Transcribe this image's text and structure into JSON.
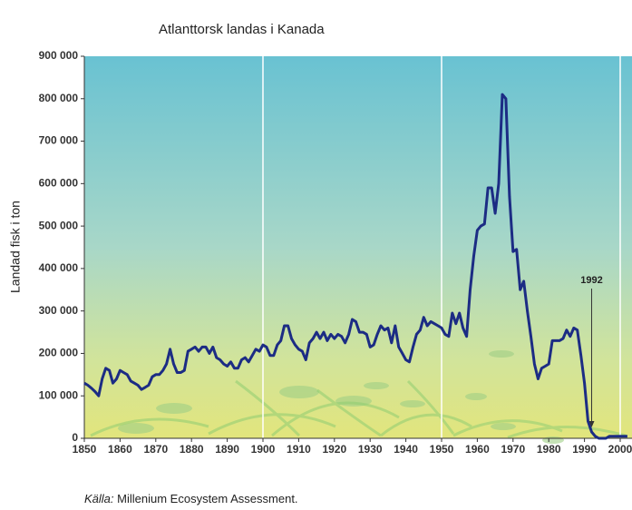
{
  "chart_data": {
    "type": "line",
    "title": "Atlanttorsk landas i Kanada",
    "y_label": "Landad fisk i ton",
    "source_label": "Källa:",
    "source": "Millenium Ecosystem Assessment.",
    "color": "#1c2c84",
    "x": [
      1850,
      1851,
      1852,
      1853,
      1854,
      1855,
      1856,
      1857,
      1858,
      1859,
      1860,
      1861,
      1862,
      1863,
      1864,
      1865,
      1866,
      1867,
      1868,
      1869,
      1870,
      1871,
      1872,
      1873,
      1874,
      1875,
      1876,
      1877,
      1878,
      1879,
      1880,
      1881,
      1882,
      1883,
      1884,
      1885,
      1886,
      1887,
      1888,
      1889,
      1890,
      1891,
      1892,
      1893,
      1894,
      1895,
      1896,
      1897,
      1898,
      1899,
      1900,
      1901,
      1902,
      1903,
      1904,
      1905,
      1906,
      1907,
      1908,
      1909,
      1910,
      1911,
      1912,
      1913,
      1914,
      1915,
      1916,
      1917,
      1918,
      1919,
      1920,
      1921,
      1922,
      1923,
      1924,
      1925,
      1926,
      1927,
      1928,
      1929,
      1930,
      1931,
      1932,
      1933,
      1934,
      1935,
      1936,
      1937,
      1938,
      1939,
      1940,
      1941,
      1942,
      1943,
      1944,
      1945,
      1946,
      1947,
      1948,
      1949,
      1950,
      1951,
      1952,
      1953,
      1954,
      1955,
      1956,
      1957,
      1958,
      1959,
      1960,
      1961,
      1962,
      1963,
      1964,
      1965,
      1966,
      1967,
      1968,
      1969,
      1970,
      1971,
      1972,
      1973,
      1974,
      1975,
      1976,
      1977,
      1978,
      1979,
      1980,
      1981,
      1982,
      1983,
      1984,
      1985,
      1986,
      1987,
      1988,
      1989,
      1990,
      1991,
      1992,
      1993,
      1994,
      1995,
      1996,
      1997,
      1998,
      1999,
      2000,
      2001,
      2002
    ],
    "values": [
      130000,
      125000,
      118000,
      110000,
      100000,
      140000,
      165000,
      160000,
      130000,
      140000,
      160000,
      155000,
      150000,
      135000,
      130000,
      125000,
      115000,
      120000,
      125000,
      145000,
      150000,
      150000,
      160000,
      175000,
      210000,
      175000,
      155000,
      155000,
      160000,
      205000,
      210000,
      215000,
      205000,
      215000,
      215000,
      200000,
      215000,
      190000,
      185000,
      175000,
      170000,
      180000,
      165000,
      165000,
      185000,
      190000,
      180000,
      195000,
      210000,
      205000,
      220000,
      215000,
      195000,
      195000,
      220000,
      230000,
      265000,
      265000,
      235000,
      220000,
      210000,
      205000,
      185000,
      225000,
      235000,
      250000,
      235000,
      250000,
      230000,
      245000,
      235000,
      245000,
      240000,
      225000,
      245000,
      280000,
      275000,
      250000,
      250000,
      245000,
      215000,
      220000,
      245000,
      265000,
      255000,
      260000,
      225000,
      265000,
      215000,
      200000,
      185000,
      180000,
      215000,
      245000,
      255000,
      285000,
      265000,
      275000,
      270000,
      265000,
      260000,
      245000,
      240000,
      295000,
      270000,
      295000,
      260000,
      240000,
      350000,
      430000,
      490000,
      500000,
      505000,
      590000,
      590000,
      530000,
      600000,
      810000,
      800000,
      570000,
      440000,
      445000,
      350000,
      370000,
      300000,
      240000,
      175000,
      140000,
      165000,
      170000,
      175000,
      230000,
      230000,
      230000,
      235000,
      255000,
      240000,
      260000,
      255000,
      195000,
      130000,
      40000,
      15000,
      5000,
      0,
      0,
      0,
      5000,
      5000,
      5000,
      5000,
      5000,
      5000
    ],
    "annotation": {
      "text": "1992",
      "x": 1992
    },
    "xlim": [
      1850,
      2003.3
    ],
    "xticks": [
      1850,
      1860,
      1870,
      1880,
      1890,
      1900,
      1910,
      1920,
      1930,
      1940,
      1950,
      1960,
      1970,
      1980,
      1990,
      2000
    ],
    "ylim": [
      0,
      900000
    ],
    "yticks": [
      0,
      {
        "value": 100000,
        "label": "100 000"
      },
      {
        "value": 200000,
        "label": "200 000"
      },
      {
        "value": 300000,
        "label": "300 000"
      },
      {
        "value": 400000,
        "label": "400 000"
      },
      {
        "value": 500000,
        "label": "500 000"
      },
      {
        "value": 600000,
        "label": "600 000"
      },
      {
        "value": 700000,
        "label": "700 000"
      },
      {
        "value": 800000,
        "label": "800 000"
      },
      {
        "value": 900000,
        "label": "900 000"
      }
    ]
  }
}
